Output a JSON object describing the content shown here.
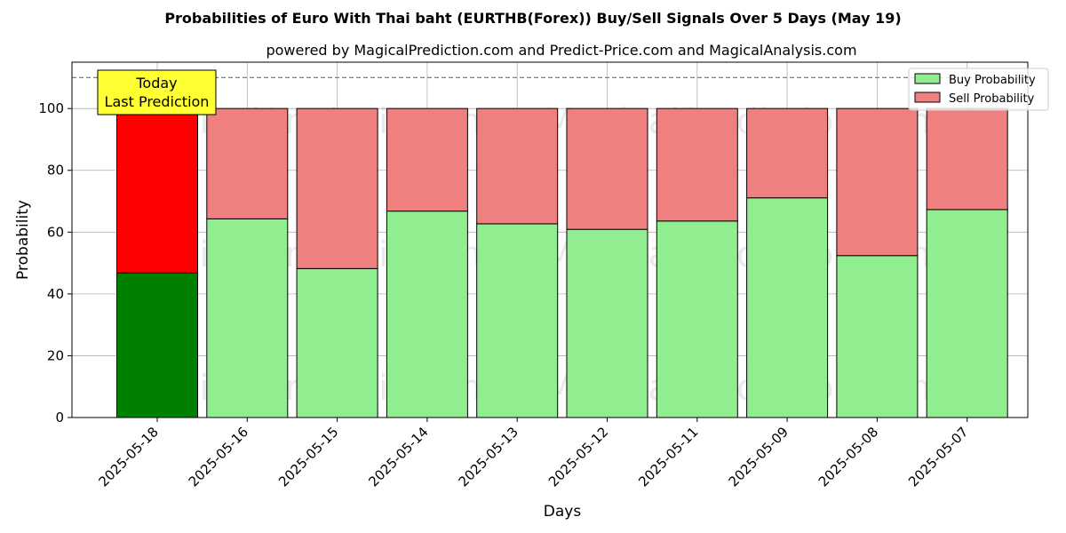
{
  "chart_data": {
    "type": "bar",
    "stacked": true,
    "title": "Probabilities of Euro With Thai baht (EURTHB(Forex)) Buy/Sell Signals Over 5 Days (May 19)",
    "subtitle": "powered by MagicalPrediction.com and Predict-Price.com and MagicalAnalysis.com",
    "xlabel": "Days",
    "ylabel": "Probability",
    "ylim": [
      0,
      115
    ],
    "yticks": [
      0,
      20,
      40,
      60,
      80,
      100
    ],
    "reference_line": 110,
    "grid": true,
    "legend_position": "top-right",
    "categories": [
      "2025-05-18",
      "2025-05-16",
      "2025-05-15",
      "2025-05-14",
      "2025-05-13",
      "2025-05-12",
      "2025-05-11",
      "2025-05-09",
      "2025-05-08",
      "2025-05-07"
    ],
    "series": [
      {
        "name": "Buy Probability",
        "color": "#90ee90",
        "highlight_color": "#008000",
        "values": [
          46.8,
          64.3,
          48.2,
          66.8,
          62.7,
          60.9,
          63.6,
          71.1,
          52.4,
          67.3
        ]
      },
      {
        "name": "Sell Probability",
        "color": "#f08080",
        "highlight_color": "#ff0000",
        "values": [
          53.2,
          35.7,
          51.8,
          33.2,
          37.3,
          39.1,
          36.4,
          28.9,
          47.6,
          32.7
        ]
      }
    ],
    "annotation": {
      "line1": "Today",
      "line2": "Last Prediction",
      "background": "#ffff33"
    },
    "watermarks": [
      "MagicalAnalysis.com",
      "MagicalPrediction.com"
    ]
  }
}
